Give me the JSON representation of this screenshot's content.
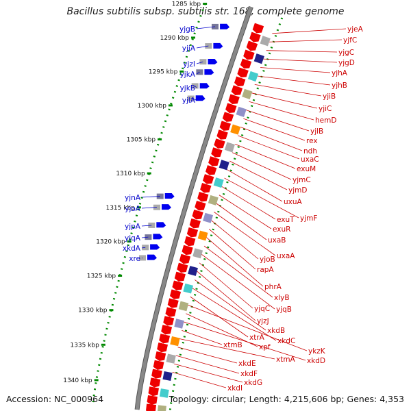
{
  "title": "Bacillus subtilis subsp. subtilis str. 168, complete genome",
  "footer": {
    "accession": "Accession: NC_000964",
    "topology": "Topology: circular; Length: 4,215,606 bp; Genes: 4,353"
  },
  "colors": {
    "backbone": "#888888",
    "forward": "#0000ee",
    "reverse": "#ee0000",
    "ticks": "#008800",
    "left_label": "#0000cc",
    "right_label": "#cc0000"
  },
  "scale": [
    {
      "label": "1285 kbp",
      "kbp": 1285
    },
    {
      "label": "1290 kbp",
      "kbp": 1290
    },
    {
      "label": "1295 kbp",
      "kbp": 1295
    },
    {
      "label": "1300 kbp",
      "kbp": 1300
    },
    {
      "label": "1305 kbp",
      "kbp": 1305
    },
    {
      "label": "1310 kbp",
      "kbp": 1310
    },
    {
      "label": "1315 kbp",
      "kbp": 1315
    },
    {
      "label": "1320 kbp",
      "kbp": 1320
    },
    {
      "label": "1325 kbp",
      "kbp": 1325
    },
    {
      "label": "1330 kbp",
      "kbp": 1330
    },
    {
      "label": "1335 kbp",
      "kbp": 1335
    },
    {
      "label": "1340 kbp",
      "kbp": 1340
    }
  ],
  "left_genes": [
    "yjgB",
    "yjiA",
    "yjzI",
    "yjkA",
    "yjkB",
    "yjlA",
    "yjnA",
    "yjoA",
    "yjpA",
    "yjqA",
    "xkdA",
    "xre"
  ],
  "right_genes": [
    "yjeA",
    "yjfC",
    "yjgC",
    "yjgD",
    "yjhA",
    "yjhB",
    "yjiB",
    "yjiC",
    "hemD",
    "yjlB",
    "rex",
    "ndh",
    "uxaC",
    "exuM",
    "yjmC",
    "yjmD",
    "uxuA",
    "yjmF",
    "exuT",
    "exuR",
    "uxaB",
    "uxaA",
    "yjoB",
    "rapA",
    "phrA",
    "xlyB",
    "yjqB",
    "yjqC",
    "yjzJ",
    "xkdB",
    "xkdC",
    "xtrA",
    "ykzK",
    "xpf",
    "xkdD",
    "xtmB",
    "xtmA",
    "xkdE",
    "xkdF",
    "xkdG",
    "xkdI"
  ]
}
